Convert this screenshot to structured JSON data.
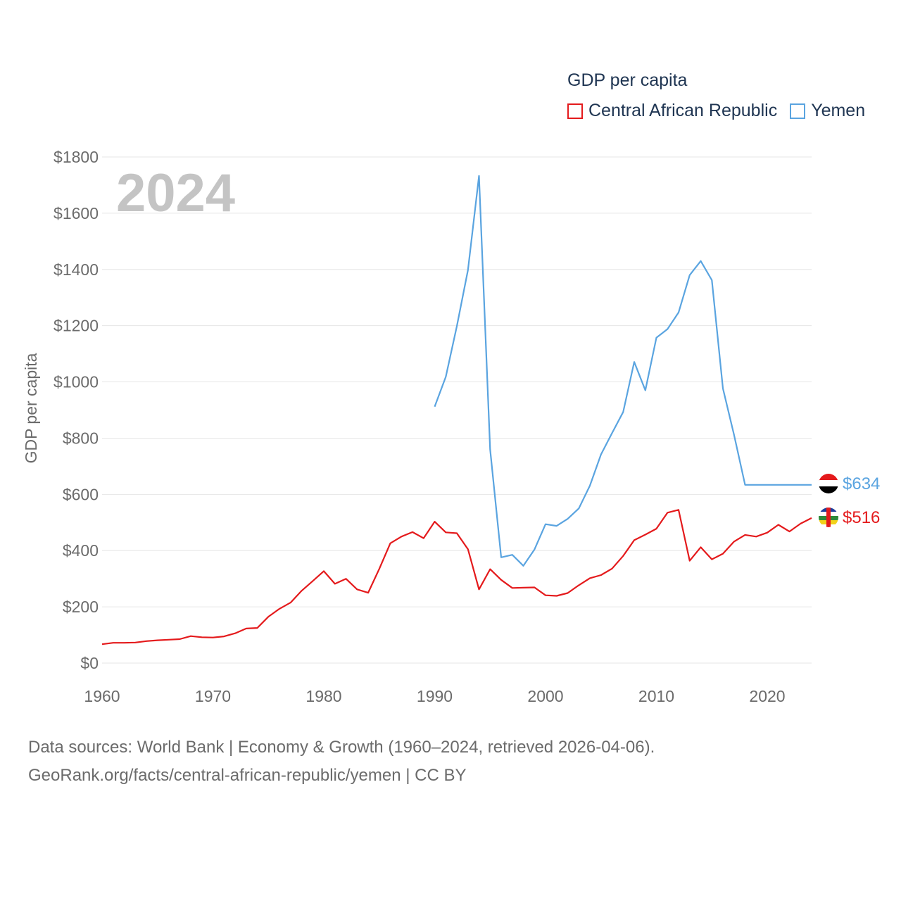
{
  "legend": {
    "title": "GDP per capita",
    "items": [
      {
        "label": "Central African Republic",
        "color": "#e41a1c"
      },
      {
        "label": "Yemen",
        "color": "#5aa4e0"
      }
    ]
  },
  "year_label": "2024",
  "end_labels": {
    "yemen": {
      "text": "$634",
      "flag": "yemen-flag-icon"
    },
    "car": {
      "text": "$516",
      "flag": "central-african-republic-flag-icon"
    }
  },
  "footer": {
    "line1": "Data sources: World Bank | Economy & Growth (1960–2024, retrieved 2026-04-06).",
    "line2": "GeoRank.org/facts/central-african-republic/yemen | CC BY"
  },
  "chart_data": {
    "type": "line",
    "title": "GDP per capita",
    "xlabel": "",
    "ylabel": "GDP per capita",
    "xlim": [
      1960,
      2024
    ],
    "ylim": [
      0,
      1800
    ],
    "x_ticks": [
      1960,
      1970,
      1980,
      1990,
      2000,
      2010,
      2020
    ],
    "y_ticks": [
      0,
      200,
      400,
      600,
      800,
      1000,
      1200,
      1400,
      1600,
      1800
    ],
    "y_tick_labels": [
      "$0",
      "$200",
      "$400",
      "$600",
      "$800",
      "$1000",
      "$1200",
      "$1400",
      "$1600",
      "$1800"
    ],
    "x_tick_labels": [
      "1960",
      "1970",
      "1980",
      "1990",
      "2000",
      "2010",
      "2020"
    ],
    "series": [
      {
        "name": "Central African Republic",
        "color": "#e41a1c",
        "x": [
          1960,
          1961,
          1962,
          1963,
          1964,
          1965,
          1966,
          1967,
          1968,
          1969,
          1970,
          1971,
          1972,
          1973,
          1974,
          1975,
          1976,
          1977,
          1978,
          1979,
          1980,
          1981,
          1982,
          1983,
          1984,
          1985,
          1986,
          1987,
          1988,
          1989,
          1990,
          1991,
          1992,
          1993,
          1994,
          1995,
          1996,
          1997,
          1998,
          1999,
          2000,
          2001,
          2002,
          2003,
          2004,
          2005,
          2006,
          2007,
          2008,
          2009,
          2010,
          2011,
          2012,
          2013,
          2014,
          2015,
          2016,
          2017,
          2018,
          2019,
          2020,
          2021,
          2022,
          2023,
          2024
        ],
        "values": [
          67,
          72,
          72,
          73,
          78,
          81,
          83,
          85,
          96,
          92,
          91,
          95,
          106,
          123,
          125,
          165,
          193,
          215,
          257,
          292,
          327,
          282,
          300,
          262,
          250,
          335,
          426,
          450,
          466,
          444,
          503,
          465,
          462,
          405,
          262,
          334,
          296,
          267,
          268,
          269,
          241,
          239,
          249,
          277,
          302,
          313,
          336,
          381,
          437,
          457,
          478,
          535,
          545,
          364,
          412,
          369,
          389,
          432,
          456,
          450,
          464,
          492,
          468,
          496,
          516
        ]
      },
      {
        "name": "Yemen",
        "color": "#5aa4e0",
        "x": [
          1990,
          1991,
          1992,
          1993,
          1994,
          1995,
          1996,
          1997,
          1998,
          1999,
          2000,
          2001,
          2002,
          2003,
          2004,
          2005,
          2006,
          2007,
          2008,
          2009,
          2010,
          2011,
          2012,
          2013,
          2014,
          2015,
          2016,
          2017,
          2018,
          2019,
          2020,
          2021,
          2022,
          2023,
          2024
        ],
        "values": [
          912,
          1018,
          1198,
          1398,
          1733,
          760,
          376,
          385,
          346,
          404,
          494,
          488,
          513,
          550,
          631,
          742,
          818,
          893,
          1071,
          970,
          1157,
          1188,
          1247,
          1380,
          1430,
          1362,
          977,
          812,
          634,
          634,
          634,
          634,
          634,
          634,
          634
        ]
      }
    ],
    "annotations": [
      "2024",
      "$634",
      "$516"
    ]
  }
}
